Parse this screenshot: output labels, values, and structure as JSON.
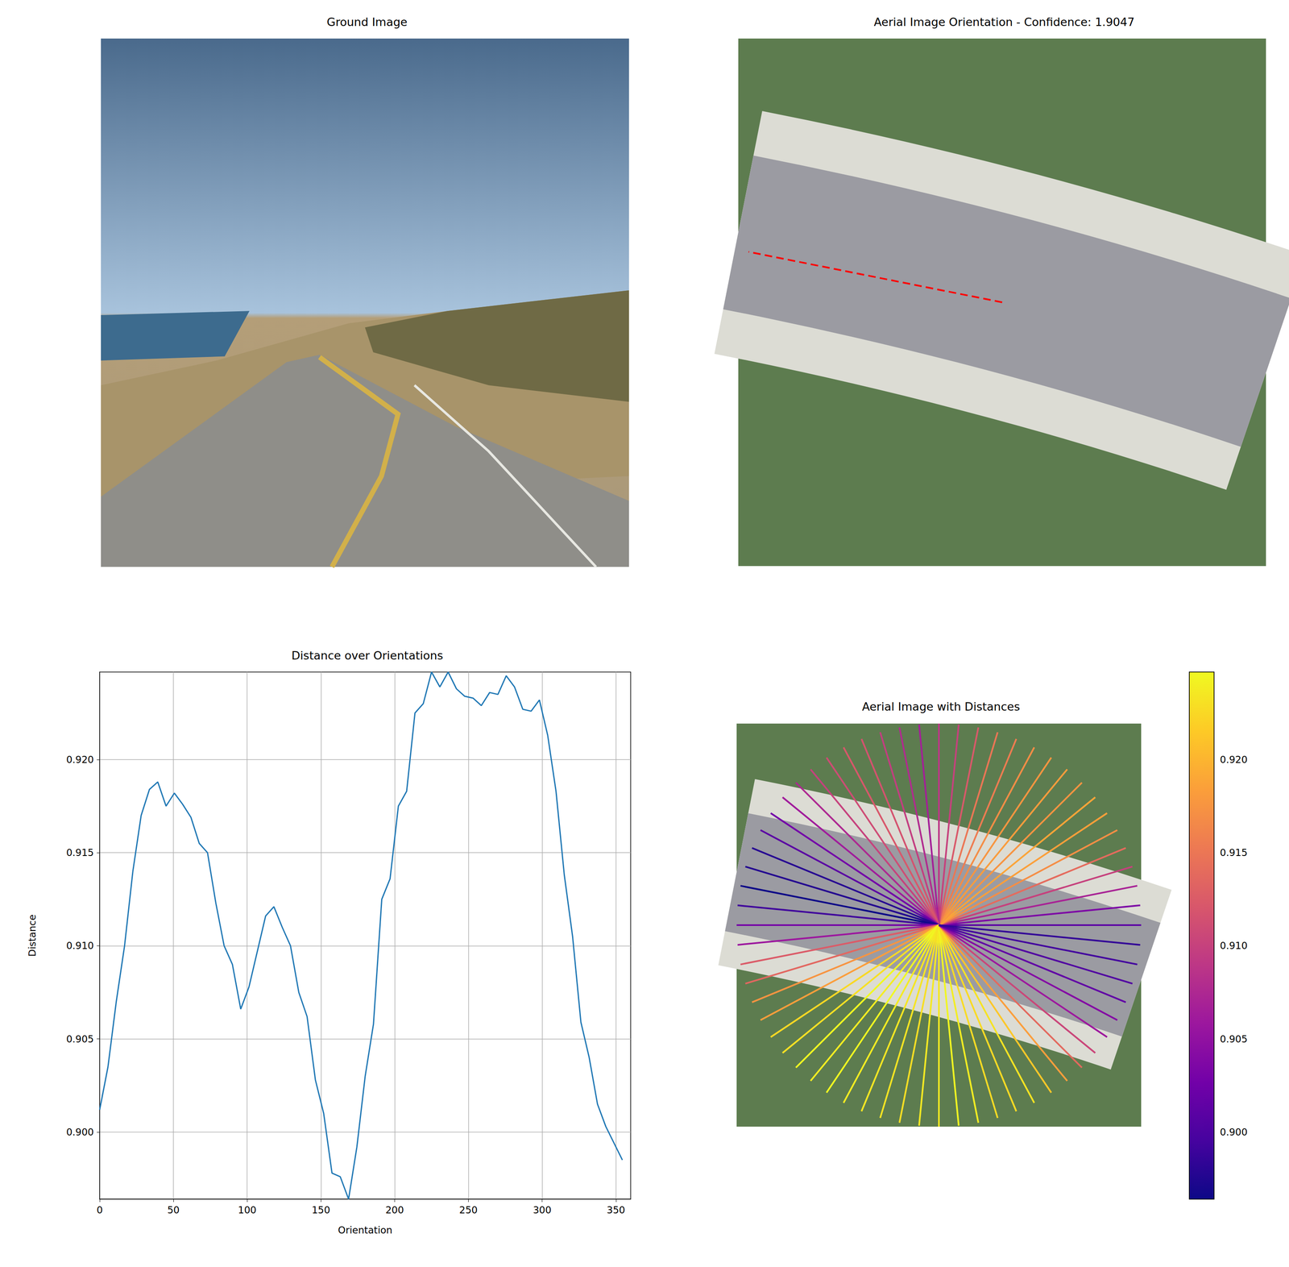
{
  "chart_data": [
    {
      "type": "image",
      "title": "Ground Image"
    },
    {
      "type": "image",
      "title": "Aerial Image Orientation - Confidence: 1.9047",
      "best_orientation": 168.75,
      "color": "#ff0000",
      "line_style": "dashed"
    },
    {
      "type": "line",
      "title": "Distance over Orientations",
      "x_label": "Orientation",
      "y_label": "Distance",
      "x": [
        0,
        5.625,
        11.25,
        16.875,
        22.5,
        28.125,
        33.75,
        39.375,
        45,
        50.625,
        56.25,
        61.875,
        67.5,
        73.125,
        78.75,
        84.375,
        90,
        95.625,
        101.25,
        106.875,
        112.5,
        118.125,
        123.75,
        129.375,
        135,
        140.625,
        146.25,
        151.875,
        157.5,
        163.125,
        168.75,
        174.375,
        180,
        185.625,
        191.25,
        196.875,
        202.5,
        208.125,
        213.75,
        219.375,
        225,
        230.625,
        236.25,
        241.875,
        247.5,
        253.125,
        258.75,
        264.375,
        270,
        275.625,
        281.25,
        286.875,
        292.5,
        298.125,
        303.75,
        309.375,
        315,
        320.625,
        326.25,
        331.875,
        337.5,
        343.125,
        348.75,
        354.375
      ],
      "values": [
        0.9012,
        0.9035,
        0.907,
        0.91,
        0.914,
        0.917,
        0.9184,
        0.9188,
        0.9175,
        0.9182,
        0.9176,
        0.9169,
        0.9155,
        0.915,
        0.9123,
        0.91,
        0.909,
        0.9066,
        0.9078,
        0.9097,
        0.9116,
        0.9121,
        0.911,
        0.91,
        0.9075,
        0.9062,
        0.9028,
        0.901,
        0.8978,
        0.8976,
        0.8964,
        0.8992,
        0.903,
        0.9058,
        0.9125,
        0.9136,
        0.9175,
        0.9183,
        0.9225,
        0.923,
        0.9247,
        0.9239,
        0.9247,
        0.9238,
        0.9234,
        0.9233,
        0.9229,
        0.9236,
        0.9235,
        0.9245,
        0.9239,
        0.9227,
        0.9226,
        0.9232,
        0.9213,
        0.9183,
        0.9138,
        0.9105,
        0.9059,
        0.904,
        0.9015,
        0.9003,
        0.8994,
        0.8985
      ],
      "color": "#1f77b4",
      "xlim": [
        0,
        360
      ],
      "xticks": [
        0,
        50,
        100,
        150,
        200,
        250,
        300,
        350
      ],
      "ylim": [
        0.8964,
        0.9247
      ],
      "yticks": [
        {
          "value": 0.9,
          "label": "0.900"
        },
        0.905,
        {
          "value": 0.91,
          "label": "0.910"
        },
        0.915,
        {
          "value": 0.92,
          "label": "0.920"
        }
      ],
      "grid": true
    },
    {
      "type": "radial",
      "title": "Aerial Image with Distances",
      "x": [
        0,
        5.625,
        11.25,
        16.875,
        22.5,
        28.125,
        33.75,
        39.375,
        45,
        50.625,
        56.25,
        61.875,
        67.5,
        73.125,
        78.75,
        84.375,
        90,
        95.625,
        101.25,
        106.875,
        112.5,
        118.125,
        123.75,
        129.375,
        135,
        140.625,
        146.25,
        151.875,
        157.5,
        163.125,
        168.75,
        174.375,
        180,
        185.625,
        191.25,
        196.875,
        202.5,
        208.125,
        213.75,
        219.375,
        225,
        230.625,
        236.25,
        241.875,
        247.5,
        253.125,
        258.75,
        264.375,
        270,
        275.625,
        281.25,
        286.875,
        292.5,
        298.125,
        303.75,
        309.375,
        315,
        320.625,
        326.25,
        331.875,
        337.5,
        343.125,
        348.75,
        354.375
      ],
      "values": [
        0.9012,
        0.9035,
        0.907,
        0.91,
        0.914,
        0.917,
        0.9184,
        0.9188,
        0.9175,
        0.9182,
        0.9176,
        0.9169,
        0.9155,
        0.915,
        0.9123,
        0.91,
        0.909,
        0.9066,
        0.9078,
        0.9097,
        0.9116,
        0.9121,
        0.911,
        0.91,
        0.9075,
        0.9062,
        0.9028,
        0.901,
        0.8978,
        0.8976,
        0.8964,
        0.8992,
        0.903,
        0.9058,
        0.9125,
        0.9136,
        0.9175,
        0.9183,
        0.9225,
        0.923,
        0.9247,
        0.9239,
        0.9247,
        0.9238,
        0.9234,
        0.9233,
        0.9229,
        0.9236,
        0.9235,
        0.9245,
        0.9239,
        0.9227,
        0.9226,
        0.9232,
        0.9213,
        0.9183,
        0.9138,
        0.9105,
        0.9059,
        0.904,
        0.9015,
        0.9003,
        0.8994,
        0.8985
      ],
      "colorbar": {
        "range": [
          0.8964,
          0.9247
        ],
        "ticks": [
          {
            "value": 0.9,
            "label": "0.900"
          },
          0.905,
          {
            "value": 0.91,
            "label": "0.910"
          },
          0.915,
          {
            "value": 0.92,
            "label": "0.920"
          }
        ]
      }
    }
  ]
}
